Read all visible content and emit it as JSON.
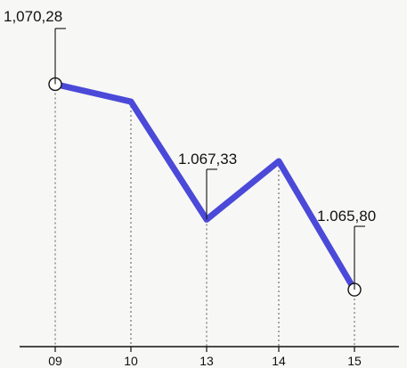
{
  "chart_data": {
    "type": "line",
    "categories": [
      "09",
      "10",
      "13",
      "14",
      "15"
    ],
    "values": [
      1070.28,
      1069.9,
      1067.33,
      1068.6,
      1065.8
    ],
    "value_labels": [
      "1,070,28",
      "",
      "1.067,33",
      "",
      "1.065,80"
    ],
    "title": "",
    "xlabel": "",
    "ylabel": "",
    "ylim": [
      1065.2,
      1070.6
    ],
    "grid": false,
    "line_color": "#4b49d8",
    "marker_color": "#ffffff"
  }
}
